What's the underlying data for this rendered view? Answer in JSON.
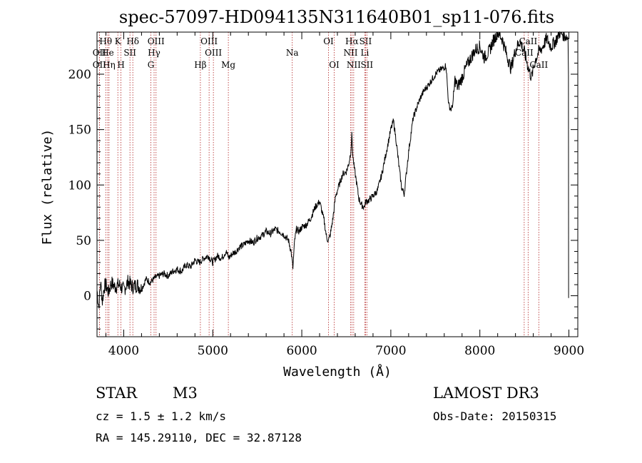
{
  "chart_data": {
    "type": "line",
    "title": "spec-57097-HD094135N311640B01_sp11-076.fits",
    "xlabel": "Wavelength (Å)",
    "ylabel": "Flux (relative)",
    "xlim": [
      3700,
      9100
    ],
    "ylim": [
      -37,
      238
    ],
    "xticks": [
      4000,
      5000,
      6000,
      7000,
      8000,
      9000
    ],
    "yticks": [
      0,
      50,
      100,
      150,
      200
    ],
    "grid": false,
    "series": [
      {
        "name": "flux",
        "x": [
          3700,
          3720,
          3740,
          3760,
          3780,
          3800,
          3830,
          3860,
          3900,
          3950,
          4000,
          4050,
          4100,
          4150,
          4200,
          4250,
          4300,
          4350,
          4400,
          4450,
          4500,
          4550,
          4600,
          4650,
          4700,
          4750,
          4800,
          4850,
          4900,
          4950,
          5000,
          5050,
          5100,
          5150,
          5180,
          5220,
          5260,
          5300,
          5350,
          5400,
          5450,
          5500,
          5550,
          5600,
          5650,
          5700,
          5750,
          5800,
          5850,
          5880,
          5900,
          5920,
          5940,
          5970,
          6000,
          6050,
          6100,
          6150,
          6200,
          6250,
          6280,
          6300,
          6320,
          6350,
          6380,
          6420,
          6460,
          6500,
          6530,
          6550,
          6562,
          6575,
          6590,
          6610,
          6640,
          6670,
          6700,
          6720,
          6750,
          6800,
          6850,
          6900,
          6950,
          7000,
          7030,
          7060,
          7090,
          7120,
          7150,
          7200,
          7250,
          7300,
          7340,
          7380,
          7420,
          7460,
          7500,
          7540,
          7580,
          7620,
          7650,
          7680,
          7700,
          7720,
          7750,
          7800,
          7850,
          7900,
          7950,
          8000,
          8050,
          8100,
          8150,
          8200,
          8250,
          8300,
          8350,
          8400,
          8450,
          8500,
          8550,
          8580,
          8620,
          8660,
          8700,
          8750,
          8800,
          8850,
          8900,
          8950,
          8990
        ],
        "values": [
          5,
          -10,
          12,
          -5,
          8,
          10,
          3,
          12,
          8,
          10,
          5,
          13,
          8,
          10,
          6,
          15,
          12,
          16,
          18,
          20,
          18,
          22,
          24,
          22,
          28,
          26,
          32,
          30,
          34,
          36,
          30,
          36,
          34,
          40,
          34,
          38,
          40,
          44,
          46,
          50,
          48,
          52,
          54,
          58,
          56,
          60,
          58,
          55,
          50,
          40,
          25,
          50,
          60,
          58,
          62,
          64,
          70,
          80,
          85,
          68,
          52,
          50,
          55,
          70,
          90,
          100,
          110,
          112,
          120,
          130,
          145,
          125,
          115,
          105,
          88,
          82,
          80,
          85,
          86,
          90,
          95,
          110,
          130,
          150,
          158,
          140,
          118,
          98,
          92,
          130,
          160,
          172,
          180,
          186,
          190,
          195,
          200,
          203,
          205,
          208,
          172,
          168,
          175,
          195,
          188,
          197,
          207,
          215,
          222,
          225,
          215,
          220,
          230,
          238,
          232,
          218,
          205,
          222,
          230,
          220,
          204,
          197,
          212,
          220,
          224,
          232,
          225,
          230,
          238,
          235,
          233
        ]
      }
    ],
    "line_markers": [
      {
        "name": "Hθ",
        "x": 3798,
        "row": 1
      },
      {
        "name": "OII",
        "x": 3727,
        "row": 2
      },
      {
        "name": "OII",
        "x": 3727,
        "row": 3
      },
      {
        "name": "K",
        "x": 3934,
        "row": 1
      },
      {
        "name": "He",
        "x": 3820,
        "row": 2
      },
      {
        "name": "Hη",
        "x": 3835,
        "row": 3
      },
      {
        "name": "Hδ",
        "x": 4102,
        "row": 1
      },
      {
        "name": "SII",
        "x": 4070,
        "row": 2
      },
      {
        "name": "H",
        "x": 3969,
        "row": 3
      },
      {
        "name": "OIII",
        "x": 4363,
        "row": 1
      },
      {
        "name": "Hγ",
        "x": 4341,
        "row": 2
      },
      {
        "name": "G",
        "x": 4305,
        "row": 3
      },
      {
        "name": "OIII",
        "x": 4959,
        "row": 1
      },
      {
        "name": "OIII",
        "x": 5007,
        "row": 2
      },
      {
        "name": "Hβ",
        "x": 4861,
        "row": 3
      },
      {
        "name": "Mg",
        "x": 5175,
        "row": 3
      },
      {
        "name": "Na",
        "x": 5893,
        "row": 2
      },
      {
        "name": "OI",
        "x": 6300,
        "row": 1
      },
      {
        "name": "OI",
        "x": 6364,
        "row": 3
      },
      {
        "name": "Hα",
        "x": 6563,
        "row": 1
      },
      {
        "name": "NII",
        "x": 6548,
        "row": 2
      },
      {
        "name": "NII",
        "x": 6583,
        "row": 3
      },
      {
        "name": "SII",
        "x": 6716,
        "row": 1
      },
      {
        "name": "Li",
        "x": 6708,
        "row": 2
      },
      {
        "name": "SII",
        "x": 6731,
        "row": 3
      },
      {
        "name": "CaII",
        "x": 8542,
        "row": 1
      },
      {
        "name": "CaII",
        "x": 8498,
        "row": 2
      },
      {
        "name": "CaII",
        "x": 8662,
        "row": 3
      }
    ]
  },
  "info": {
    "object_type": "STAR",
    "subclass": "M3",
    "survey": "LAMOST DR3",
    "cz": "cz = 1.5 ± 1.2 km/s",
    "obs_date": "Obs-Date: 20150315",
    "coords": "RA = 145.29110, DEC =  32.87128"
  },
  "colors": {
    "line_marker": "#b22222",
    "spectrum": "#000000"
  }
}
